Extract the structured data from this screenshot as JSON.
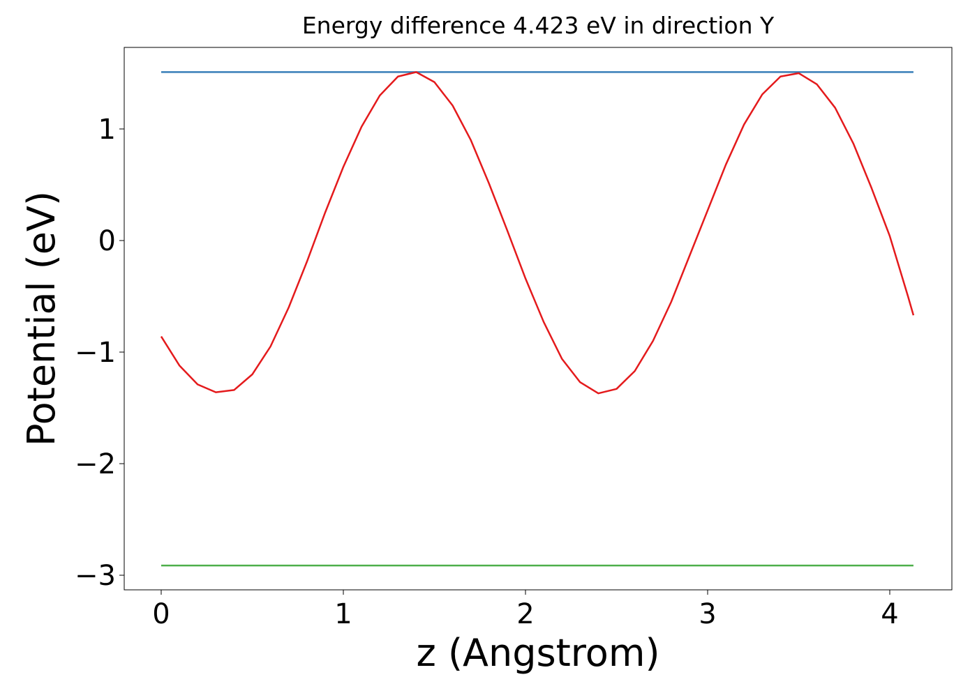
{
  "chart_data": {
    "type": "line",
    "title": "Energy difference 4.423 eV in direction Y",
    "x_label": "z (Angstrom)",
    "y_label": "Potential (eV)",
    "xlim": [
      -0.203,
      4.341
    ],
    "ylim": [
      -3.131,
      1.731
    ],
    "xticks": [
      0,
      1,
      2,
      3,
      4
    ],
    "yticks": [
      {
        "value": -3,
        "label": "−3"
      },
      {
        "value": -2,
        "label": "−2"
      },
      {
        "value": -1,
        "label": "−1"
      },
      0,
      1
    ],
    "grid": false,
    "series": [
      {
        "color": "#377eb8",
        "x": [
          0,
          4.13
        ],
        "values": [
          1.51,
          1.51
        ]
      },
      {
        "color": "#e41a1c",
        "x": [
          0,
          0.1,
          0.2,
          0.3,
          0.4,
          0.5,
          0.6,
          0.7,
          0.8,
          0.9,
          1.0,
          1.1,
          1.2,
          1.3,
          1.4,
          1.5,
          1.6,
          1.7,
          1.8,
          1.9,
          2.0,
          2.1,
          2.2,
          2.3,
          2.4,
          2.5,
          2.6,
          2.7,
          2.8,
          2.9,
          3.0,
          3.1,
          3.2,
          3.3,
          3.4,
          3.5,
          3.6,
          3.7,
          3.8,
          3.9,
          4.0,
          4.1,
          4.13
        ],
        "values": [
          -0.86,
          -1.12,
          -1.29,
          -1.36,
          -1.34,
          -1.2,
          -0.95,
          -0.6,
          -0.19,
          0.25,
          0.66,
          1.02,
          1.3,
          1.47,
          1.51,
          1.42,
          1.21,
          0.9,
          0.51,
          0.09,
          -0.34,
          -0.73,
          -1.06,
          -1.27,
          -1.37,
          -1.33,
          -1.17,
          -0.9,
          -0.55,
          -0.14,
          0.27,
          0.68,
          1.04,
          1.31,
          1.47,
          1.5,
          1.4,
          1.19,
          0.87,
          0.47,
          0.04,
          -0.5,
          -0.67
        ]
      },
      {
        "color": "#4daf4a",
        "x": [
          0,
          4.13
        ],
        "values": [
          -2.913,
          -2.913
        ]
      }
    ]
  }
}
